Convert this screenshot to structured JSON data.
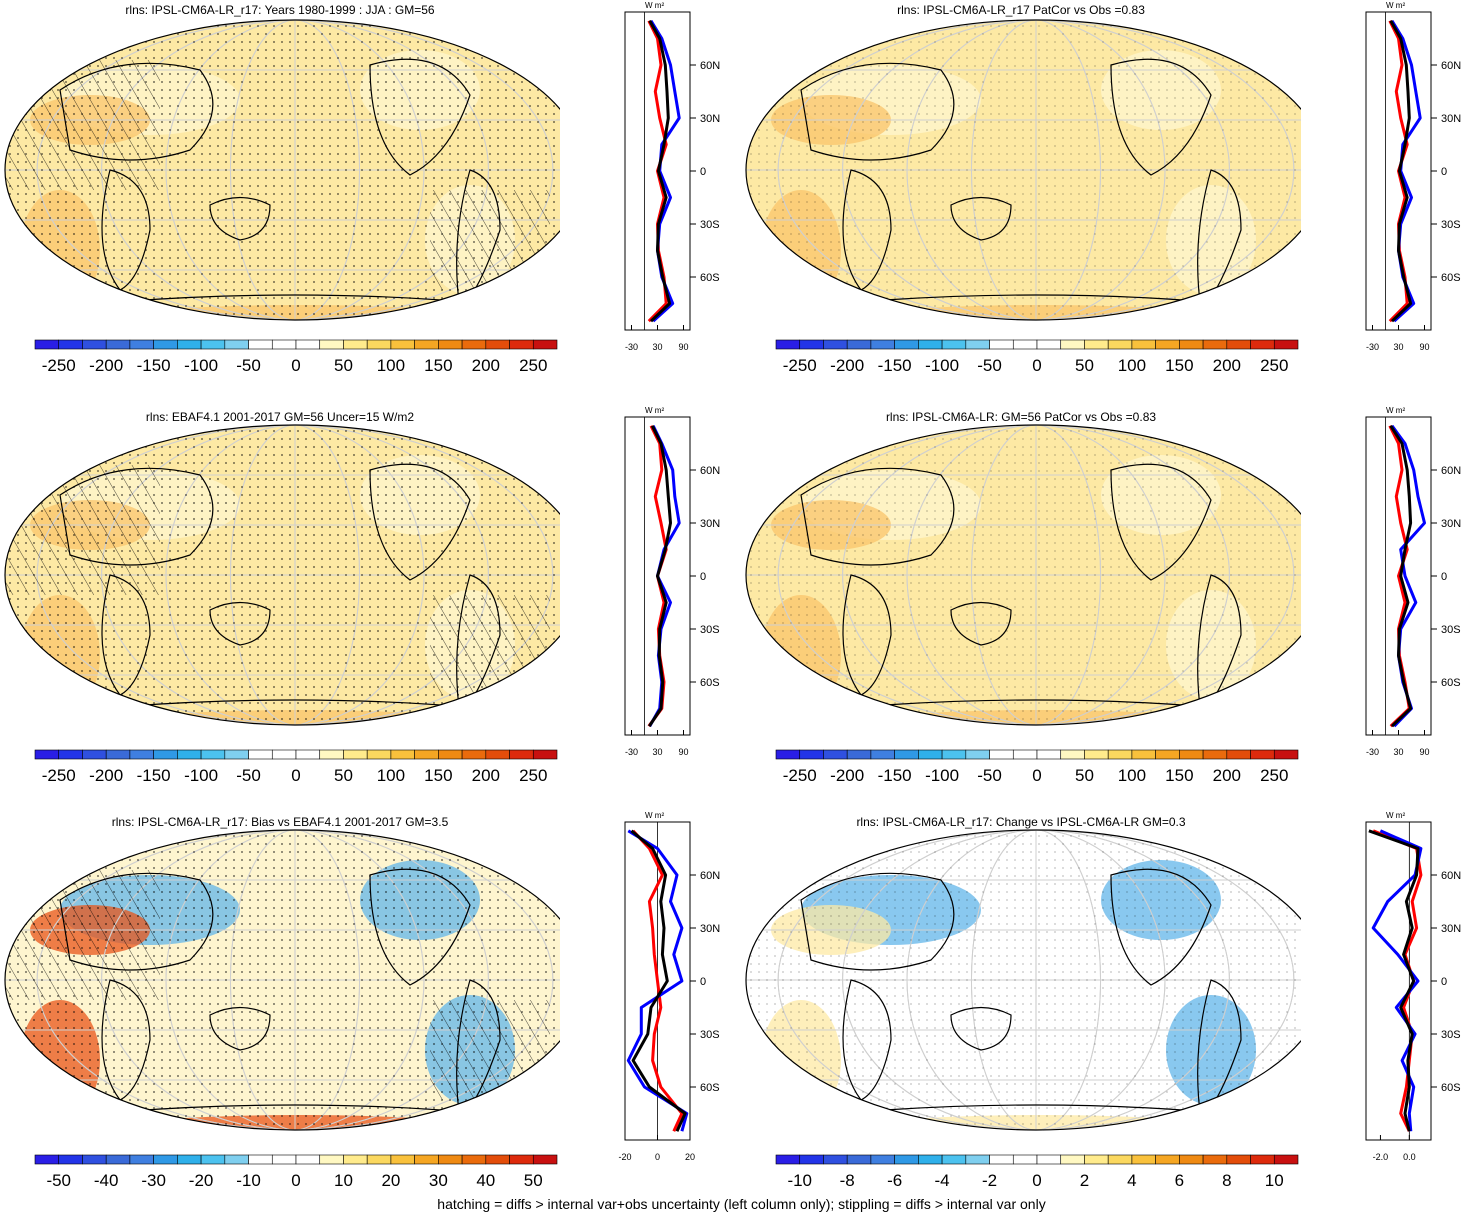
{
  "footer_note": "hatching = diffs > internal var+obs uncertainty (left column only); stippling = diffs > internal var only",
  "colors": {
    "model": "#000000",
    "obs": "#0000ff",
    "other": "#ff0000"
  },
  "chart_data": [
    {
      "type": "heatmap",
      "title": "rlns: IPSL-CM6A-LR_r17: Years 1980-1999 : JJA : GM=56",
      "colorbar": {
        "labels": [
          "-250",
          "-200",
          "-150",
          "-100",
          "-50",
          "0",
          "50",
          "100",
          "150",
          "200",
          "250"
        ],
        "min": -275,
        "max": 275
      },
      "zonal_profile": {
        "unit": "W m²",
        "y_labels": [
          "60N",
          "30N",
          "0",
          "30S",
          "60S"
        ],
        "x_labels": [
          "-30",
          "30",
          "90"
        ],
        "xlim": [
          -45,
          105
        ],
        "series": [
          {
            "lat": [
              85,
              75,
              60,
              45,
              30,
              15,
              0,
              -15,
              -30,
              -45,
              -60,
              -75,
              -85
            ],
            "values": [
              10,
              30,
              38,
              25,
              35,
              50,
              30,
              45,
              30,
              32,
              45,
              50,
              10
            ]
          },
          {
            "lat": [
              85,
              75,
              60,
              45,
              30,
              15,
              0,
              -15,
              -30,
              -45,
              -60,
              -75,
              -85
            ],
            "values": [
              15,
              40,
              60,
              70,
              80,
              40,
              35,
              60,
              35,
              30,
              40,
              65,
              20
            ]
          },
          {
            "lat": [
              85,
              75,
              60,
              45,
              30,
              15,
              0,
              -15,
              -30,
              -45,
              -60,
              -75,
              -85
            ],
            "values": [
              12,
              35,
              48,
              52,
              55,
              45,
              32,
              50,
              32,
              30,
              42,
              58,
              15
            ]
          }
        ]
      }
    },
    {
      "type": "heatmap",
      "title": "rlns: IPSL-CM6A-LR_r17 PatCor vs Obs =0.83",
      "colorbar": {
        "labels": [
          "-250",
          "-200",
          "-150",
          "-100",
          "-50",
          "0",
          "50",
          "100",
          "150",
          "200",
          "250"
        ],
        "min": -275,
        "max": 275
      },
      "zonal_profile": {
        "unit": "W m²",
        "y_labels": [
          "60N",
          "30N",
          "0",
          "30S",
          "60S"
        ],
        "x_labels": [
          "-30",
          "30",
          "90"
        ],
        "xlim": [
          -45,
          105
        ],
        "series": [
          {
            "lat": [
              85,
              75,
              60,
              45,
              30,
              15,
              0,
              -15,
              -30,
              -45,
              -60,
              -75,
              -85
            ],
            "values": [
              10,
              30,
              38,
              25,
              35,
              50,
              30,
              45,
              30,
              32,
              45,
              50,
              10
            ]
          },
          {
            "lat": [
              85,
              75,
              60,
              45,
              30,
              15,
              0,
              -15,
              -30,
              -45,
              -60,
              -75,
              -85
            ],
            "values": [
              15,
              40,
              60,
              70,
              80,
              40,
              35,
              60,
              35,
              30,
              40,
              65,
              20
            ]
          },
          {
            "lat": [
              85,
              75,
              60,
              45,
              30,
              15,
              0,
              -15,
              -30,
              -45,
              -60,
              -75,
              -85
            ],
            "values": [
              12,
              35,
              48,
              52,
              55,
              45,
              32,
              50,
              32,
              30,
              42,
              58,
              15
            ]
          }
        ]
      }
    },
    {
      "type": "heatmap",
      "title": "rlns: EBAF4.1 2001-2017 GM=56 Uncer=15 W/m2",
      "colorbar": {
        "labels": [
          "-250",
          "-200",
          "-150",
          "-100",
          "-50",
          "0",
          "50",
          "100",
          "150",
          "200",
          "250"
        ],
        "min": -275,
        "max": 275
      },
      "zonal_profile": {
        "unit": "W m²",
        "y_labels": [
          "60N",
          "30N",
          "0",
          "30S",
          "60S"
        ],
        "x_labels": [
          "-30",
          "30",
          "90"
        ],
        "xlim": [
          -45,
          105
        ],
        "series": [
          {
            "lat": [
              85,
              75,
              60,
              45,
              30,
              15,
              0,
              -15,
              -30,
              -45,
              -60,
              -75,
              -85
            ],
            "values": [
              15,
              35,
              40,
              25,
              38,
              50,
              30,
              45,
              32,
              35,
              45,
              40,
              10
            ]
          },
          {
            "lat": [
              85,
              75,
              60,
              45,
              30,
              15,
              0,
              -15,
              -30,
              -45,
              -60,
              -75,
              -85
            ],
            "values": [
              20,
              40,
              65,
              70,
              80,
              45,
              30,
              60,
              38,
              32,
              40,
              35,
              12
            ]
          },
          {
            "lat": [
              85,
              75,
              60,
              45,
              30,
              15,
              0,
              -15,
              -30,
              -45,
              -60,
              -75,
              -85
            ],
            "values": [
              18,
              38,
              50,
              55,
              60,
              48,
              30,
              50,
              35,
              34,
              42,
              38,
              11
            ]
          }
        ]
      }
    },
    {
      "type": "heatmap",
      "title": "rlns: IPSL-CM6A-LR: GM=56 PatCor vs Obs =0.83",
      "colorbar": {
        "labels": [
          "-250",
          "-200",
          "-150",
          "-100",
          "-50",
          "0",
          "50",
          "100",
          "150",
          "200",
          "250"
        ],
        "min": -275,
        "max": 275
      },
      "zonal_profile": {
        "unit": "W m²",
        "y_labels": [
          "60N",
          "30N",
          "0",
          "30S",
          "60S"
        ],
        "x_labels": [
          "-30",
          "30",
          "90"
        ],
        "xlim": [
          -45,
          105
        ],
        "series": [
          {
            "lat": [
              85,
              75,
              60,
              45,
              30,
              15,
              0,
              -15,
              -30,
              -45,
              -60,
              -75,
              -85
            ],
            "values": [
              10,
              30,
              38,
              25,
              35,
              50,
              30,
              45,
              30,
              32,
              45,
              55,
              12
            ]
          },
          {
            "lat": [
              85,
              75,
              60,
              45,
              30,
              15,
              0,
              -15,
              -30,
              -45,
              -60,
              -75,
              -85
            ],
            "values": [
              15,
              45,
              65,
              75,
              90,
              35,
              45,
              70,
              35,
              30,
              40,
              60,
              20
            ]
          },
          {
            "lat": [
              85,
              75,
              60,
              45,
              30,
              15,
              0,
              -15,
              -30,
              -45,
              -60,
              -75,
              -85
            ],
            "values": [
              12,
              38,
              50,
              55,
              58,
              45,
              35,
              52,
              32,
              30,
              42,
              58,
              15
            ]
          }
        ]
      }
    },
    {
      "type": "heatmap",
      "title": "rlns: IPSL-CM6A-LR_r17: Bias vs EBAF4.1 2001-2017 GM=3.5",
      "colorbar": {
        "labels": [
          "-50",
          "-40",
          "-30",
          "-20",
          "-10",
          "0",
          "10",
          "20",
          "30",
          "40",
          "50"
        ],
        "min": -55,
        "max": 55
      },
      "zonal_profile": {
        "unit": "W m²",
        "y_labels": [
          "60N",
          "30N",
          "0",
          "30S",
          "60S"
        ],
        "x_labels": [
          "-20",
          "0",
          "20"
        ],
        "xlim": [
          -20,
          20
        ],
        "series": [
          {
            "lat": [
              85,
              75,
              60,
              45,
              30,
              15,
              0,
              -15,
              -30,
              -45,
              -60,
              -75,
              -85
            ],
            "values": [
              -15,
              -5,
              3,
              -5,
              -3,
              -2,
              0,
              2,
              -2,
              -3,
              2,
              15,
              10
            ]
          },
          {
            "lat": [
              85,
              75,
              60,
              45,
              30,
              15,
              0,
              -15,
              -30,
              -45,
              -60,
              -75,
              -85
            ],
            "values": [
              -18,
              0,
              12,
              8,
              15,
              10,
              15,
              -10,
              -10,
              -18,
              -8,
              18,
              15
            ]
          },
          {
            "lat": [
              85,
              75,
              60,
              45,
              30,
              15,
              0,
              -15,
              -30,
              -45,
              -60,
              -75,
              -85
            ],
            "values": [
              -16,
              -3,
              5,
              2,
              4,
              3,
              6,
              -4,
              -6,
              -15,
              -5,
              17,
              12
            ]
          }
        ]
      }
    },
    {
      "type": "heatmap",
      "title": "rlns: IPSL-CM6A-LR_r17: Change vs IPSL-CM6A-LR GM=0.3",
      "colorbar": {
        "labels": [
          "-10",
          "-8",
          "-6",
          "-4",
          "-2",
          "0",
          "2",
          "4",
          "6",
          "8",
          "10"
        ],
        "min": -11,
        "max": 11
      },
      "zonal_profile": {
        "unit": "W m²",
        "y_labels": [
          "60N",
          "30N",
          "0",
          "30S",
          "60S"
        ],
        "x_labels": [
          "-2.0",
          "0.0"
        ],
        "xlim": [
          -3.0,
          1.5
        ],
        "series": [
          {
            "lat": [
              85,
              75,
              60,
              45,
              30,
              15,
              0,
              -15,
              -30,
              -45,
              -60,
              -75,
              -85
            ],
            "values": [
              -2.5,
              0.5,
              0.8,
              0.2,
              0.5,
              -0.3,
              0.3,
              -0.4,
              0.2,
              0.0,
              -0.2,
              -0.6,
              0.0
            ]
          },
          {
            "lat": [
              85,
              75,
              60,
              45,
              30,
              15,
              0,
              -15,
              -30,
              -45,
              -60,
              -75,
              -85
            ],
            "values": [
              -2.0,
              0.8,
              0.4,
              -1.5,
              -2.5,
              -0.8,
              0.6,
              -0.9,
              0.4,
              -0.5,
              0.3,
              0.0,
              0.1
            ]
          },
          {
            "lat": [
              85,
              75,
              60,
              45,
              30,
              15,
              0,
              -15,
              -30,
              -45,
              -60,
              -75,
              -85
            ],
            "values": [
              -2.8,
              0.6,
              0.5,
              -0.2,
              0.2,
              -0.4,
              0.3,
              -0.6,
              0.2,
              -0.1,
              0.0,
              -0.3,
              0.0
            ]
          }
        ]
      }
    }
  ]
}
